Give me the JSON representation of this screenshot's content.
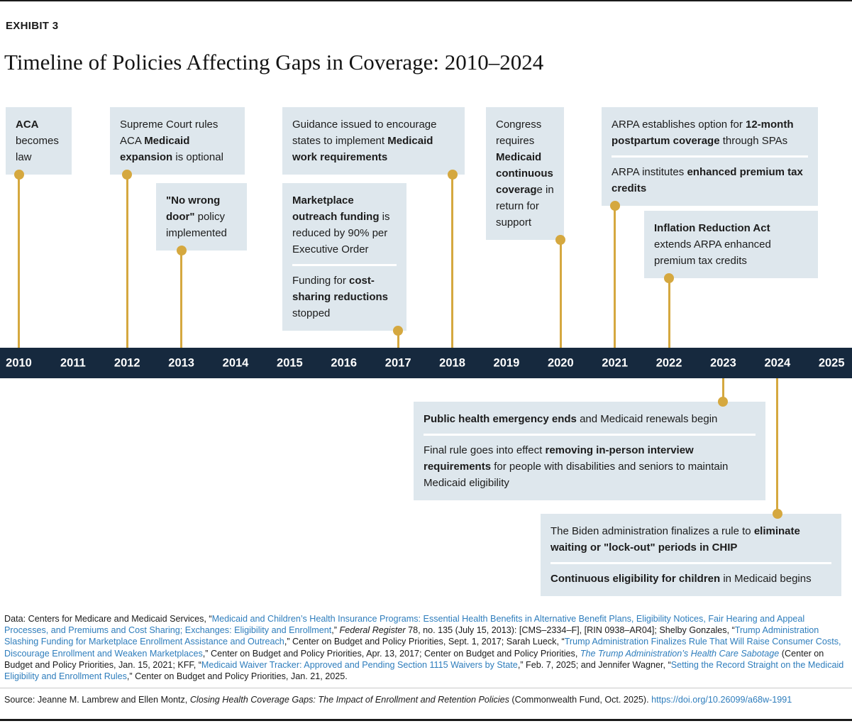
{
  "header": {
    "exhibit_label": "EXHIBIT 3",
    "title": "Timeline of Policies Affecting Gaps in Coverage: 2010–2024"
  },
  "colors": {
    "accent_gold": "#d5a83f",
    "bar_navy": "#16293e",
    "box_background": "#dee7ed",
    "link_blue": "#2e7dbc"
  },
  "timeline": {
    "years": [
      "2010",
      "2011",
      "2012",
      "2013",
      "2014",
      "2015",
      "2016",
      "2017",
      "2018",
      "2019",
      "2020",
      "2021",
      "2022",
      "2023",
      "2024",
      "2025"
    ]
  },
  "events": [
    {
      "id": "aca",
      "year": 2010,
      "side": "above",
      "paragraphs": [
        [
          {
            "t": "ACA",
            "b": 1
          },
          {
            "t": " becomes law"
          }
        ]
      ]
    },
    {
      "id": "scotus",
      "year": 2012,
      "side": "above",
      "paragraphs": [
        [
          {
            "t": "Supreme Court rules ACA "
          },
          {
            "t": "Medicaid expansion",
            "b": 1
          },
          {
            "t": " is optional"
          }
        ]
      ]
    },
    {
      "id": "nwd",
      "year": 2013,
      "side": "above",
      "paragraphs": [
        [
          {
            "t": "\"No wrong door\"",
            "b": 1
          },
          {
            "t": " policy implemented"
          }
        ]
      ]
    },
    {
      "id": "guidance",
      "year": 2018,
      "side": "above",
      "paragraphs": [
        [
          {
            "t": "Guidance issued to encourage states to implement "
          },
          {
            "t": "Medicaid work requirements",
            "b": 1
          }
        ]
      ]
    },
    {
      "id": "marketplace",
      "year": 2017,
      "side": "above",
      "paragraphs": [
        [
          {
            "t": "Marketplace outreach funding",
            "b": 1
          },
          {
            "t": " is reduced by 90% per Executive Order"
          }
        ],
        [
          {
            "t": "Funding for "
          },
          {
            "t": "cost-sharing reductions",
            "b": 1
          },
          {
            "t": " stopped"
          }
        ]
      ]
    },
    {
      "id": "congress",
      "year": 2020,
      "side": "above",
      "paragraphs": [
        [
          {
            "t": "Congress requires "
          },
          {
            "t": "Medicaid continuous coverag",
            "b": 1
          },
          {
            "t": "e in return for support"
          }
        ]
      ]
    },
    {
      "id": "arpa",
      "year": 2021,
      "side": "above",
      "paragraphs": [
        [
          {
            "t": "ARPA establishes option for "
          },
          {
            "t": "12-month postpartum coverage",
            "b": 1
          },
          {
            "t": " through SPAs"
          }
        ],
        [
          {
            "t": "ARPA institutes "
          },
          {
            "t": "enhanced premium tax credits",
            "b": 1
          }
        ]
      ]
    },
    {
      "id": "ira",
      "year": 2022,
      "side": "above",
      "paragraphs": [
        [
          {
            "t": "Inflation Reduction Act",
            "b": 1
          },
          {
            "t": " extends ARPA enhanced premium tax credits"
          }
        ]
      ]
    },
    {
      "id": "phe",
      "year": 2023,
      "side": "below",
      "paragraphs": [
        [
          {
            "t": "Public health emergency ends",
            "b": 1
          },
          {
            "t": " and Medicaid renewals begin"
          }
        ],
        [
          {
            "t": "Final rule goes into effect "
          },
          {
            "t": "removing in-person interview requirements",
            "b": 1
          },
          {
            "t": " for people with disabilities and seniors to maintain Medicaid eligibility"
          }
        ]
      ]
    },
    {
      "id": "chip",
      "year": 2024,
      "side": "below",
      "paragraphs": [
        [
          {
            "t": "The Biden administration finalizes a rule to "
          },
          {
            "t": "eliminate waiting or \"lock-out\" periods in CHIP",
            "b": 1
          }
        ],
        [
          {
            "t": "Continuous eligibility for children",
            "b": 1
          },
          {
            "t": " in Medicaid begins"
          }
        ]
      ]
    }
  ],
  "footnotes": {
    "data_note": [
      {
        "t": "Data: Centers for Medicare and Medicaid Services, “"
      },
      {
        "t": "Medicaid and Children’s Health Insurance Programs: Essential Health Benefits in Alternative Benefit Plans, Eligibility Notices, Fair Hearing and Appeal Processes, and Premiums and Cost Sharing; Exchanges: Eligibility and Enrollment",
        "link": 1
      },
      {
        "t": ",” "
      },
      {
        "t": "Federal Register",
        "i": 1
      },
      {
        "t": " 78, no. 135 (July 15, 2013): [CMS–2334–F], [RIN 0938–AR04]; Shelby Gonzales, “"
      },
      {
        "t": "Trump Administration Slashing Funding for Marketplace Enrollment Assistance and Outreach",
        "link": 1
      },
      {
        "t": ",” Center on Budget and Policy Priorities, Sept. 1, 2017; Sarah Lueck, “"
      },
      {
        "t": "Trump Administration Finalizes Rule That Will Raise Consumer Costs, Discourage Enrollment and Weaken Marketplaces",
        "link": 1
      },
      {
        "t": ",” Center on Budget and Policy Priorities, Apr. 13, 2017; Center on Budget and Policy Priorities, "
      },
      {
        "t": "The Trump Administration’s Health Care Sabotage",
        "link": 1,
        "i": 1
      },
      {
        "t": " (Center on Budget and Policy Priorities, Jan. 15, 2021; KFF, “"
      },
      {
        "t": "Medicaid Waiver Tracker: Approved and Pending Section 1115 Waivers by State",
        "link": 1
      },
      {
        "t": ",” Feb. 7, 2025; and Jennifer Wagner, “"
      },
      {
        "t": "Setting the Record Straight on the Medicaid Eligibility and Enrollment Rules",
        "link": 1
      },
      {
        "t": ",” Center on Budget and Policy Priorities, Jan. 21, 2025."
      }
    ],
    "source": [
      {
        "t": "Source: Jeanne M. Lambrew and Ellen Montz, "
      },
      {
        "t": "Closing Health Coverage Gaps: The Impact of Enrollment and Retention Policies",
        "i": 1
      },
      {
        "t": " (Commonwealth Fund, Oct. 2025). "
      },
      {
        "t": "https://doi.org/10.26099/a68w-1991",
        "link": 1
      }
    ]
  }
}
